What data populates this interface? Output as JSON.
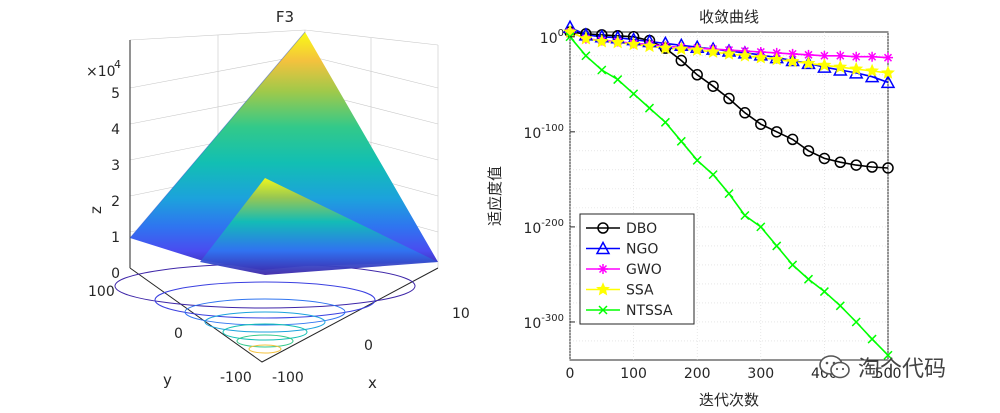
{
  "chart_data": [
    {
      "type": "surface",
      "title": "F3",
      "xlabel": "x",
      "ylabel": "y",
      "zlabel": "z",
      "z_exponent_label": "×10",
      "z_exponent_power": "4",
      "x_ticks": [
        "-100",
        "0",
        "100"
      ],
      "y_ticks": [
        "-100",
        "0",
        "100"
      ],
      "z_ticks": [
        "0",
        "1",
        "2",
        "3",
        "4",
        "5"
      ],
      "zlim": [
        0,
        5
      ]
    },
    {
      "type": "line",
      "title": "收敛曲线",
      "xlabel": "迭代次数",
      "ylabel": "适应度值",
      "yscale": "log",
      "xlim": [
        0,
        500
      ],
      "y_ticks": [
        {
          "base": "10",
          "exp": "0",
          "value_exp": 0
        },
        {
          "base": "10",
          "exp": "-100",
          "value_exp": -100
        },
        {
          "base": "10",
          "exp": "-200",
          "value_exp": -200
        },
        {
          "base": "10",
          "exp": "-300",
          "value_exp": -300
        }
      ],
      "x_ticks": [
        "0",
        "100",
        "200",
        "300",
        "400",
        "500"
      ],
      "legend_position": "bottom-left",
      "series": [
        {
          "name": "DBO",
          "color": "#000000",
          "marker": "circle",
          "x": [
            0,
            25,
            50,
            75,
            100,
            125,
            150,
            175,
            200,
            225,
            250,
            275,
            300,
            325,
            350,
            375,
            400,
            425,
            450,
            475,
            500
          ],
          "log10_y": [
            5,
            3,
            2,
            1,
            0,
            -4,
            -12,
            -25,
            -40,
            -52,
            -65,
            -80,
            -92,
            -100,
            -108,
            -120,
            -128,
            -132,
            -135,
            -137,
            -138
          ]
        },
        {
          "name": "NGO",
          "color": "#0000ff",
          "marker": "triangle",
          "x": [
            0,
            25,
            50,
            75,
            100,
            125,
            150,
            175,
            200,
            225,
            250,
            275,
            300,
            325,
            350,
            375,
            400,
            425,
            450,
            475,
            500
          ],
          "log10_y": [
            10,
            2,
            0,
            -1,
            -3,
            -5,
            -7,
            -9,
            -11,
            -13,
            -15,
            -17,
            -19,
            -22,
            -25,
            -28,
            -32,
            -35,
            -38,
            -42,
            -48
          ]
        },
        {
          "name": "GWO",
          "color": "#ff00ff",
          "marker": "asterisk",
          "x": [
            0,
            25,
            50,
            75,
            100,
            125,
            150,
            175,
            200,
            225,
            250,
            275,
            300,
            325,
            350,
            375,
            400,
            425,
            450,
            475,
            500
          ],
          "log10_y": [
            5,
            -2,
            -4,
            -5,
            -7,
            -8,
            -10,
            -11,
            -12,
            -13,
            -14,
            -15,
            -16,
            -17,
            -18,
            -19,
            -20,
            -20,
            -21,
            -21,
            -22
          ]
        },
        {
          "name": "SSA",
          "color": "#ffff00",
          "marker": "star",
          "x": [
            0,
            25,
            50,
            75,
            100,
            125,
            150,
            175,
            200,
            225,
            250,
            275,
            300,
            325,
            350,
            375,
            400,
            425,
            450,
            475,
            500
          ],
          "log10_y": [
            5,
            -2,
            -5,
            -6,
            -8,
            -10,
            -12,
            -13,
            -14,
            -16,
            -18,
            -20,
            -22,
            -24,
            -26,
            -28,
            -30,
            -32,
            -34,
            -36,
            -38
          ]
        },
        {
          "name": "NTSSA",
          "color": "#00ff00",
          "marker": "x",
          "x": [
            0,
            25,
            50,
            75,
            100,
            125,
            150,
            175,
            200,
            225,
            250,
            275,
            300,
            325,
            350,
            375,
            400,
            425,
            450,
            475,
            500
          ],
          "log10_y": [
            0,
            -20,
            -35,
            -45,
            -60,
            -75,
            -90,
            -110,
            -130,
            -145,
            -165,
            -188,
            -200,
            -220,
            -240,
            -255,
            -268,
            -283,
            -300,
            -318,
            -335
          ]
        }
      ]
    }
  ],
  "watermark": {
    "text": "淘个代码"
  }
}
